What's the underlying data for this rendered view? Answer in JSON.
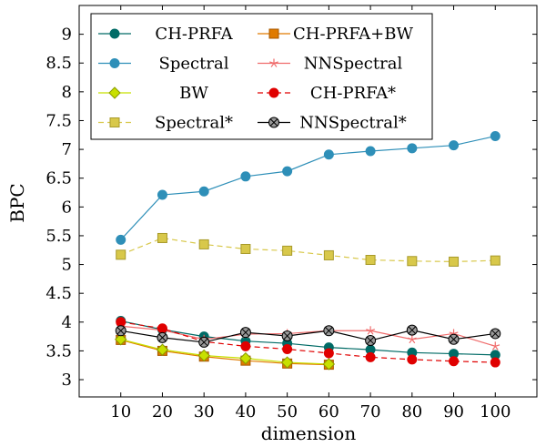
{
  "chart_data": {
    "type": "line",
    "title": "",
    "xlabel": "dimension",
    "ylabel": "BPC",
    "x": [
      10,
      20,
      30,
      40,
      50,
      60,
      70,
      80,
      90,
      100
    ],
    "xlim": [
      0,
      110
    ],
    "ylim": [
      2.7,
      9.5
    ],
    "yticks": [
      3,
      3.5,
      4,
      4.5,
      5,
      5.5,
      6,
      6.5,
      7,
      7.5,
      8,
      8.5,
      9
    ],
    "ytick_labels": [
      "3",
      "3.5",
      "4",
      "4.5",
      "5",
      "5.5",
      "6",
      "6.5",
      "7",
      "7.5",
      "8",
      "8.5",
      "9"
    ],
    "legend_position": "top-left",
    "series": [
      {
        "name": "CH-PRFA",
        "color": "#006b66",
        "marker": "circle",
        "dashed": false,
        "x": [
          10,
          20,
          30,
          40,
          50,
          60,
          70,
          80,
          90,
          100
        ],
        "values": [
          4.02,
          3.87,
          3.75,
          3.67,
          3.63,
          3.56,
          3.52,
          3.47,
          3.45,
          3.43
        ]
      },
      {
        "name": "CH-PRFA+BW",
        "color": "#e07b00",
        "marker": "square",
        "dashed": false,
        "x": [
          10,
          20,
          30,
          40,
          50,
          60
        ],
        "values": [
          3.69,
          3.5,
          3.4,
          3.33,
          3.28,
          3.26
        ]
      },
      {
        "name": "Spectral",
        "color": "#2e8fb8",
        "marker": "circle",
        "dashed": false,
        "x": [
          10,
          20,
          30,
          40,
          50,
          60,
          70,
          80,
          90,
          100
        ],
        "values": [
          5.43,
          6.21,
          6.27,
          6.53,
          6.62,
          6.91,
          6.97,
          7.02,
          7.07,
          7.23
        ]
      },
      {
        "name": "NNSpectral",
        "color": "#f06c6c",
        "marker": "star",
        "dashed": false,
        "x": [
          10,
          20,
          30,
          40,
          50,
          60,
          70,
          80,
          90,
          100
        ],
        "values": [
          3.93,
          3.86,
          3.7,
          3.79,
          3.8,
          3.85,
          3.85,
          3.7,
          3.8,
          3.58
        ]
      },
      {
        "name": "BW",
        "color": "#c8e000",
        "marker": "diamond",
        "dashed": false,
        "x": [
          10,
          20,
          30,
          40,
          50,
          60
        ],
        "values": [
          3.7,
          3.52,
          3.42,
          3.37,
          3.3,
          3.27
        ]
      },
      {
        "name": "CH-PRFA*",
        "color": "#e00000",
        "marker": "circle",
        "dashed": true,
        "x": [
          10,
          20,
          30,
          40,
          50,
          60,
          70,
          80,
          90,
          100
        ],
        "values": [
          4.0,
          3.89,
          3.66,
          3.58,
          3.53,
          3.46,
          3.39,
          3.35,
          3.32,
          3.3
        ]
      },
      {
        "name": "Spectral*",
        "color": "#d8c84a",
        "marker": "square",
        "dashed": true,
        "x": [
          10,
          20,
          30,
          40,
          50,
          60,
          70,
          80,
          90,
          100
        ],
        "values": [
          5.17,
          5.46,
          5.35,
          5.27,
          5.24,
          5.16,
          5.08,
          5.06,
          5.05,
          5.07
        ]
      },
      {
        "name": "NNSpectral*",
        "color": "#000000",
        "marker": "circle-x",
        "dashed": false,
        "x": [
          10,
          20,
          30,
          40,
          50,
          60,
          70,
          80,
          90,
          100
        ],
        "values": [
          3.85,
          3.73,
          3.65,
          3.82,
          3.76,
          3.85,
          3.68,
          3.86,
          3.7,
          3.8
        ]
      }
    ]
  }
}
